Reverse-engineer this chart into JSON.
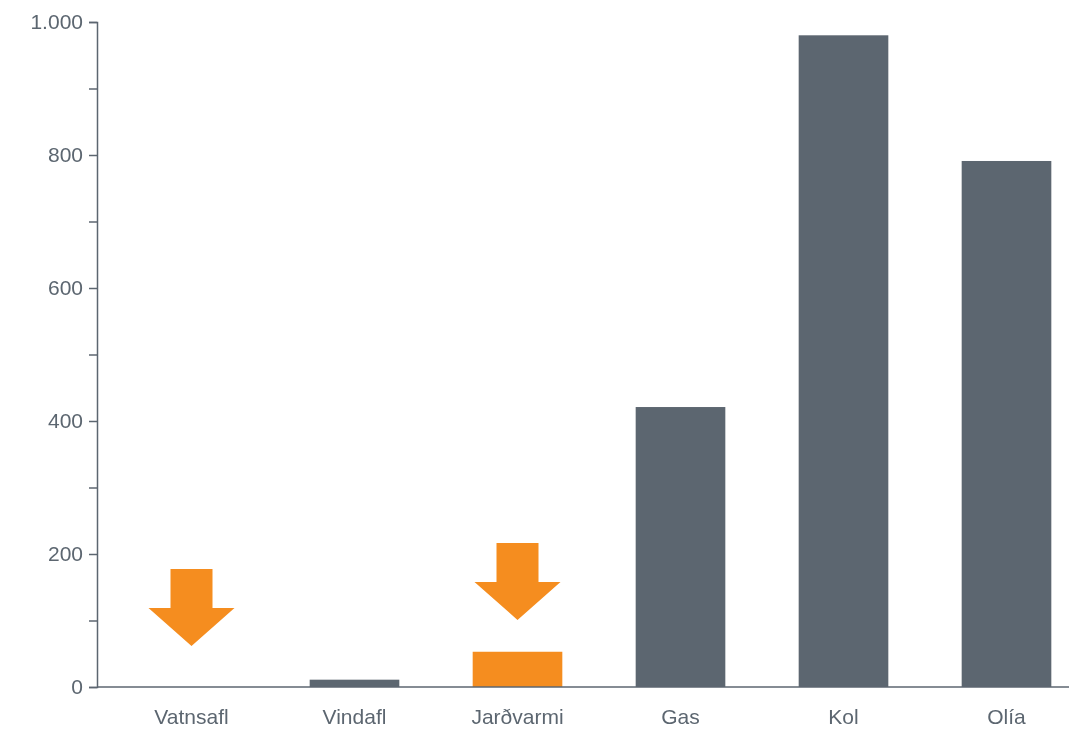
{
  "chart_data": {
    "type": "bar",
    "categories": [
      "Vatnsafl",
      "Vindafl",
      "Jarðvarmi",
      "Gas",
      "Kol",
      "Olía"
    ],
    "values": [
      0,
      11,
      53,
      421,
      980,
      791
    ],
    "colors": [
      "#f58d1f",
      "#5c6670",
      "#f58d1f",
      "#5c6670",
      "#5c6670",
      "#5c6670"
    ],
    "ylim": [
      0,
      1000
    ],
    "yticks": [
      0,
      {
        "value": 100,
        "label": null
      },
      200,
      {
        "value": 300,
        "label": null
      },
      400,
      {
        "value": 500,
        "label": null
      },
      600,
      {
        "value": 700,
        "label": null
      },
      800,
      {
        "value": 900,
        "label": null
      },
      {
        "value": 1000,
        "label": "1.000"
      }
    ],
    "grid": false
  }
}
